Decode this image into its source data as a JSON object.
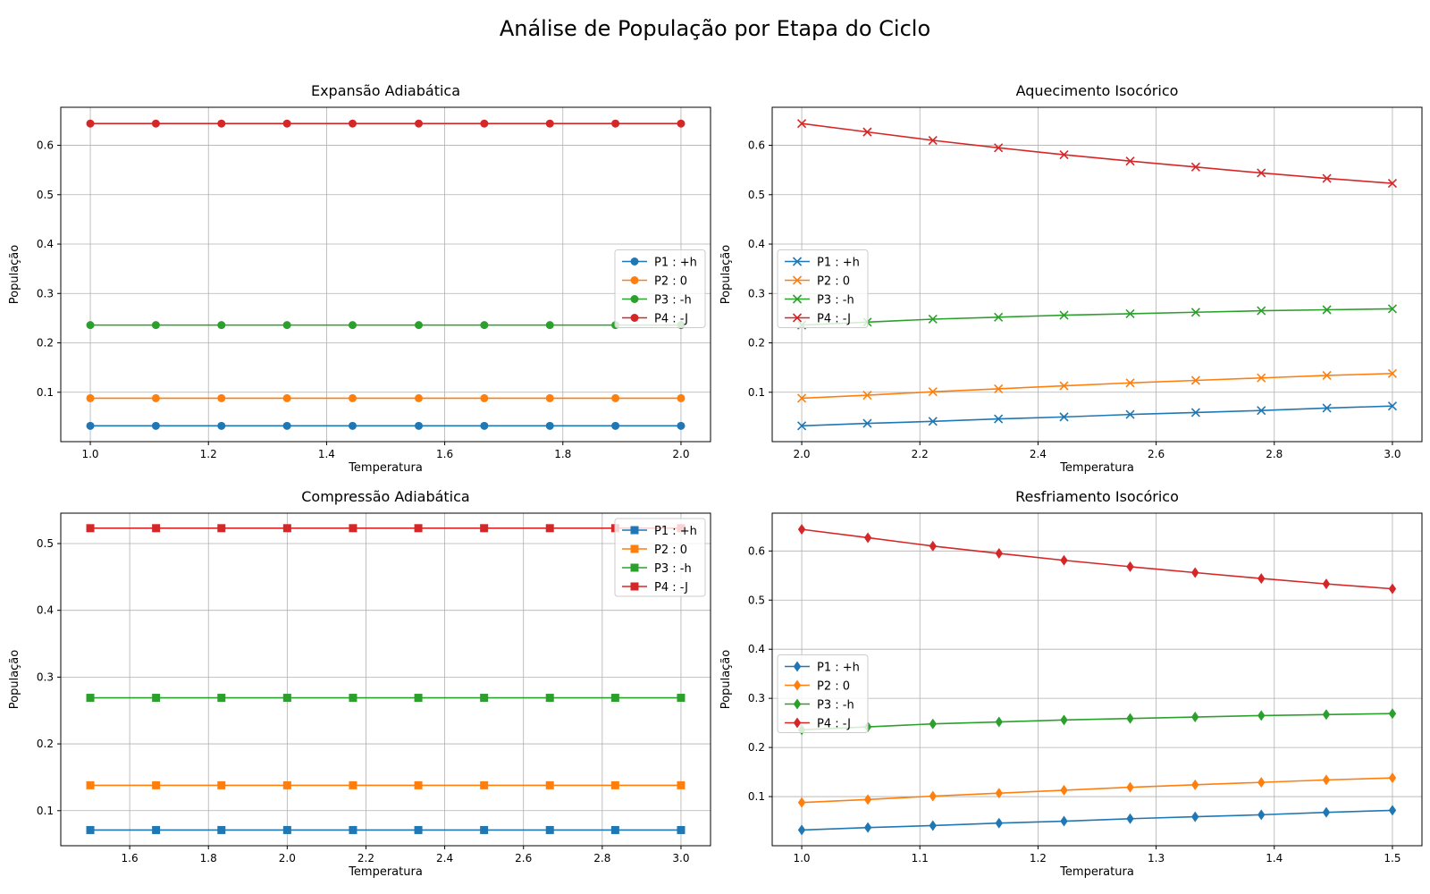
{
  "suptitle": "Análise de População por Etapa do Ciclo",
  "chart_data": [
    {
      "type": "line",
      "title": "Expansão Adiabática",
      "xlabel": "Temperatura",
      "ylabel": "População",
      "marker": "circle",
      "xlim": [
        0.95,
        2.05
      ],
      "ylim": [
        0.0,
        0.677
      ],
      "xticks": [
        1.0,
        1.2,
        1.4,
        1.6,
        1.8,
        2.0
      ],
      "xtick_labels": [
        "1.0",
        "1.2",
        "1.4",
        "1.6",
        "1.8",
        "2.0"
      ],
      "yticks": [
        0.1,
        0.2,
        0.3,
        0.4,
        0.5,
        0.6
      ],
      "ytick_labels": [
        "0.1",
        "0.2",
        "0.3",
        "0.4",
        "0.5",
        "0.6"
      ],
      "grid": true,
      "legend_position": "center-right",
      "x": [
        1.0,
        1.111,
        1.222,
        1.333,
        1.444,
        1.556,
        1.667,
        1.778,
        1.889,
        2.0
      ],
      "series": [
        {
          "name": "P1 : +h",
          "color": "#1f77b4",
          "values": [
            0.032,
            0.032,
            0.032,
            0.032,
            0.032,
            0.032,
            0.032,
            0.032,
            0.032,
            0.032
          ]
        },
        {
          "name": "P2 : 0",
          "color": "#ff7f0e",
          "values": [
            0.088,
            0.088,
            0.088,
            0.088,
            0.088,
            0.088,
            0.088,
            0.088,
            0.088,
            0.088
          ]
        },
        {
          "name": "P3 : -h",
          "color": "#2ca02c",
          "values": [
            0.236,
            0.236,
            0.236,
            0.236,
            0.236,
            0.236,
            0.236,
            0.236,
            0.236,
            0.236
          ]
        },
        {
          "name": "P4 : -J",
          "color": "#d62728",
          "values": [
            0.644,
            0.644,
            0.644,
            0.644,
            0.644,
            0.644,
            0.644,
            0.644,
            0.644,
            0.644
          ]
        }
      ]
    },
    {
      "type": "line",
      "title": "Aquecimento Isocórico",
      "xlabel": "Temperatura",
      "ylabel": "População",
      "marker": "x",
      "xlim": [
        1.95,
        3.05
      ],
      "ylim": [
        0.0,
        0.677
      ],
      "xticks": [
        2.0,
        2.2,
        2.4,
        2.6,
        2.8,
        3.0
      ],
      "xtick_labels": [
        "2.0",
        "2.2",
        "2.4",
        "2.6",
        "2.8",
        "3.0"
      ],
      "yticks": [
        0.1,
        0.2,
        0.3,
        0.4,
        0.5,
        0.6
      ],
      "ytick_labels": [
        "0.1",
        "0.2",
        "0.3",
        "0.4",
        "0.5",
        "0.6"
      ],
      "grid": true,
      "legend_position": "center-left",
      "x": [
        2.0,
        2.111,
        2.222,
        2.333,
        2.444,
        2.556,
        2.667,
        2.778,
        2.889,
        3.0
      ],
      "series": [
        {
          "name": "P1 : +h",
          "color": "#1f77b4",
          "values": [
            0.032,
            0.037,
            0.041,
            0.046,
            0.05,
            0.055,
            0.059,
            0.063,
            0.068,
            0.072
          ]
        },
        {
          "name": "P2 : 0",
          "color": "#ff7f0e",
          "values": [
            0.088,
            0.094,
            0.101,
            0.107,
            0.113,
            0.119,
            0.124,
            0.129,
            0.134,
            0.138
          ]
        },
        {
          "name": "P3 : -h",
          "color": "#2ca02c",
          "values": [
            0.236,
            0.242,
            0.248,
            0.252,
            0.256,
            0.259,
            0.262,
            0.265,
            0.267,
            0.269
          ]
        },
        {
          "name": "P4 : -J",
          "color": "#d62728",
          "values": [
            0.644,
            0.627,
            0.61,
            0.595,
            0.581,
            0.568,
            0.556,
            0.544,
            0.533,
            0.523
          ]
        }
      ]
    },
    {
      "type": "line",
      "title": "Compressão Adiabática",
      "xlabel": "Temperatura",
      "ylabel": "População",
      "marker": "square",
      "xlim": [
        1.425,
        3.075
      ],
      "ylim": [
        0.0475,
        0.5455
      ],
      "xticks": [
        1.6,
        1.8,
        2.0,
        2.2,
        2.4,
        2.6,
        2.8,
        3.0
      ],
      "xtick_labels": [
        "1.6",
        "1.8",
        "2.0",
        "2.2",
        "2.4",
        "2.6",
        "2.8",
        "3.0"
      ],
      "yticks": [
        0.1,
        0.2,
        0.3,
        0.4,
        0.5
      ],
      "ytick_labels": [
        "0.1",
        "0.2",
        "0.3",
        "0.4",
        "0.5"
      ],
      "grid": true,
      "legend_position": "top-right",
      "x": [
        1.5,
        1.667,
        1.833,
        2.0,
        2.167,
        2.333,
        2.5,
        2.667,
        2.833,
        3.0
      ],
      "series": [
        {
          "name": "P1 : +h",
          "color": "#1f77b4",
          "values": [
            0.071,
            0.071,
            0.071,
            0.071,
            0.071,
            0.071,
            0.071,
            0.071,
            0.071,
            0.071
          ]
        },
        {
          "name": "P2 : 0",
          "color": "#ff7f0e",
          "values": [
            0.138,
            0.138,
            0.138,
            0.138,
            0.138,
            0.138,
            0.138,
            0.138,
            0.138,
            0.138
          ]
        },
        {
          "name": "P3 : -h",
          "color": "#2ca02c",
          "values": [
            0.269,
            0.269,
            0.269,
            0.269,
            0.269,
            0.269,
            0.269,
            0.269,
            0.269,
            0.269
          ]
        },
        {
          "name": "P4 : -J",
          "color": "#d62728",
          "values": [
            0.523,
            0.523,
            0.523,
            0.523,
            0.523,
            0.523,
            0.523,
            0.523,
            0.523,
            0.523
          ]
        }
      ]
    },
    {
      "type": "line",
      "title": "Resfriamento Isocórico",
      "xlabel": "Temperatura",
      "ylabel": "População",
      "marker": "diamond",
      "xlim": [
        0.975,
        1.525
      ],
      "ylim": [
        0.0,
        0.677
      ],
      "xticks": [
        1.0,
        1.1,
        1.2,
        1.3,
        1.4,
        1.5
      ],
      "xtick_labels": [
        "1.0",
        "1.1",
        "1.2",
        "1.3",
        "1.4",
        "1.5"
      ],
      "yticks": [
        0.1,
        0.2,
        0.3,
        0.4,
        0.5,
        0.6
      ],
      "ytick_labels": [
        "0.1",
        "0.2",
        "0.3",
        "0.4",
        "0.5",
        "0.6"
      ],
      "grid": true,
      "legend_position": "center-left",
      "x": [
        1.0,
        1.056,
        1.111,
        1.167,
        1.222,
        1.278,
        1.333,
        1.389,
        1.444,
        1.5
      ],
      "series": [
        {
          "name": "P1 : +h",
          "color": "#1f77b4",
          "values": [
            0.032,
            0.037,
            0.041,
            0.046,
            0.05,
            0.055,
            0.059,
            0.063,
            0.068,
            0.072
          ]
        },
        {
          "name": "P2 : 0",
          "color": "#ff7f0e",
          "values": [
            0.088,
            0.094,
            0.101,
            0.107,
            0.113,
            0.119,
            0.124,
            0.129,
            0.134,
            0.138
          ]
        },
        {
          "name": "P3 : -h",
          "color": "#2ca02c",
          "values": [
            0.236,
            0.242,
            0.248,
            0.252,
            0.256,
            0.259,
            0.262,
            0.265,
            0.267,
            0.269
          ]
        },
        {
          "name": "P4 : -J",
          "color": "#d62728",
          "values": [
            0.644,
            0.627,
            0.61,
            0.595,
            0.581,
            0.568,
            0.556,
            0.544,
            0.533,
            0.523
          ]
        }
      ]
    }
  ]
}
